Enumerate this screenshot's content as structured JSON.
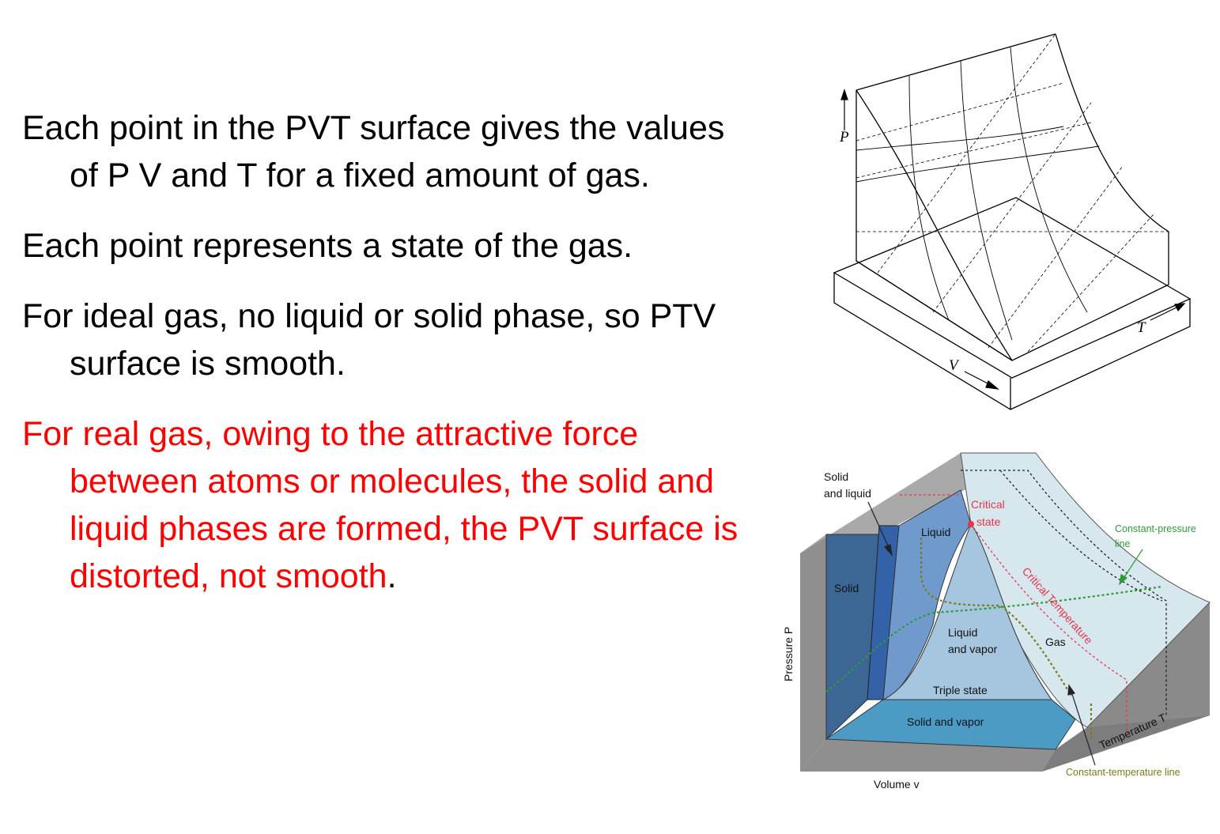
{
  "bullets": [
    {
      "text": "Each point in the PVT surface gives the values of P V and T for a fixed amount of gas.",
      "color": "#000000"
    },
    {
      "text": "Each point represents a state of the gas.",
      "color": "#000000"
    },
    {
      "text": "For ideal gas, no liquid or solid phase, so PTV surface is smooth.",
      "color": "#000000"
    },
    {
      "text": "For real gas, owing to the attractive force between atoms or molecules, the solid and liquid phases are formed, the PVT surface is distorted, not smooth",
      "trailing": ".",
      "color": "#ff0000"
    }
  ],
  "ideal_diagram": {
    "axis_p": "P",
    "axis_v": "V",
    "axis_t": "T"
  },
  "real_diagram": {
    "labels": {
      "solid_and_liquid_1": "Solid",
      "solid_and_liquid_2": "and liquid",
      "critical_state_1": "Critical",
      "critical_state_2": "state",
      "liquid": "Liquid",
      "solid": "Solid",
      "liquid_and_vapor_1": "Liquid",
      "liquid_and_vapor_2": "and vapor",
      "gas": "Gas",
      "triple_state": "Triple state",
      "solid_and_vapor": "Solid and vapor",
      "critical_temperature": "Critical Temperature",
      "constant_pressure_1": "Constant-pressure",
      "constant_pressure_2": "line",
      "constant_temperature": "Constant-temperature line",
      "pressure_axis": "Pressure   P",
      "volume_axis": "Volume   v",
      "temperature_axis": "Temperature   T"
    },
    "colors": {
      "solid": "#3b6494",
      "liquid": "#6f9bcc",
      "liquid_vapor": "#a6c7df",
      "gas": "#d7e8ef",
      "solid_vapor": "#4a9ac4",
      "frame": "#9a9a9a",
      "critical": "#e8344a",
      "constant_pressure": "#2f9a3a",
      "constant_temperature": "#7a7a1e"
    }
  }
}
